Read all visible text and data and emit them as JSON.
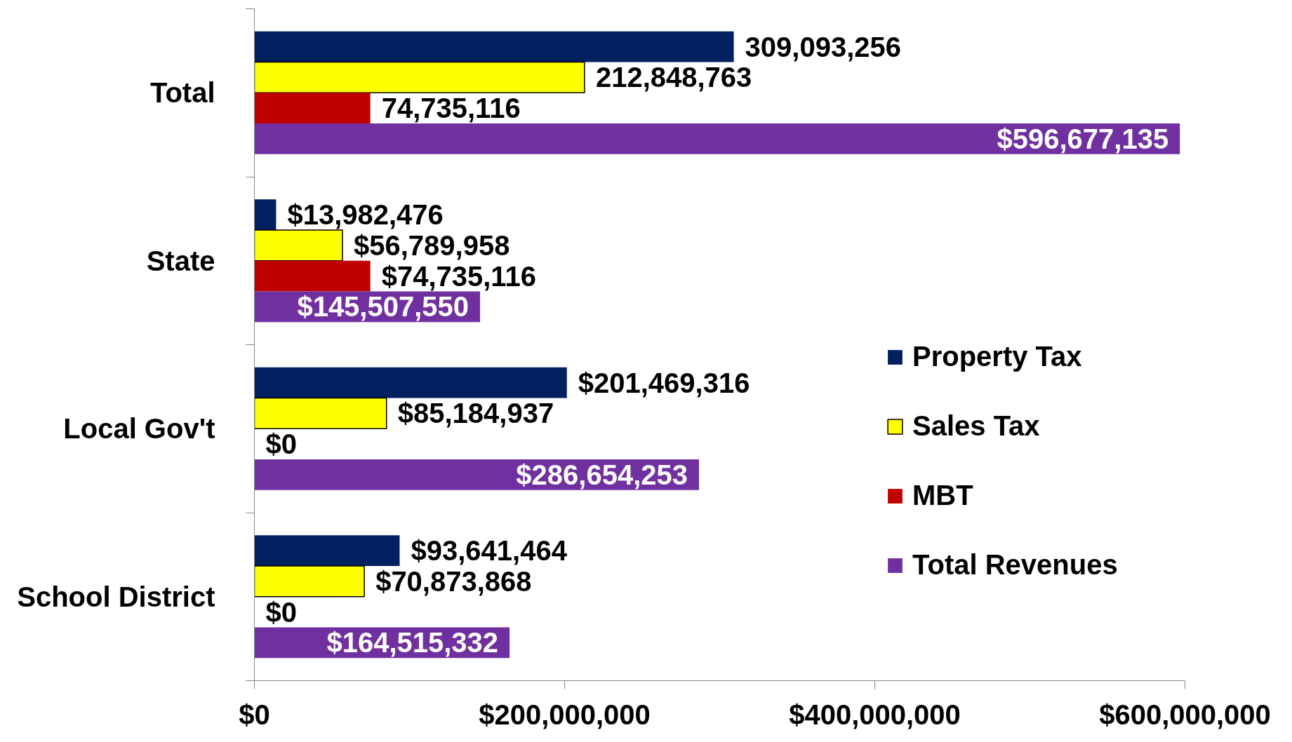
{
  "chart_data": {
    "type": "bar",
    "orientation": "horizontal",
    "categories": [
      "Total",
      "State",
      "Local Gov't",
      "School District"
    ],
    "series": [
      {
        "name": "Property Tax",
        "color": "#002060",
        "values": [
          309093256,
          13982476,
          201469316,
          93641464
        ],
        "value_labels": [
          "309,093,256",
          "$13,982,476",
          "$201,469,316",
          "$93,641,464"
        ]
      },
      {
        "name": "Sales Tax",
        "color": "#ffff00",
        "values": [
          212848763,
          56789958,
          85184937,
          70873868
        ],
        "value_labels": [
          "212,848,763",
          "$56,789,958",
          "$85,184,937",
          "$70,873,868"
        ]
      },
      {
        "name": "MBT",
        "color": "#c00000",
        "values": [
          74735116,
          74735116,
          0,
          0
        ],
        "value_labels": [
          "74,735,116",
          "$74,735,116",
          "$0",
          "$0"
        ]
      },
      {
        "name": "Total Revenues",
        "color": "#7030a0",
        "values": [
          596677135,
          145507550,
          286654253,
          164515332
        ],
        "value_labels": [
          "$596,677,135",
          "$145,507,550",
          "$286,654,253",
          "$164,515,332"
        ]
      }
    ],
    "xlim": [
      0,
      600000000
    ],
    "xticks": [
      {
        "value": 0,
        "label": "$0"
      },
      {
        "value": 200000000,
        "label": "$200,000,000"
      },
      {
        "value": 400000000,
        "label": "$400,000,000"
      },
      {
        "value": 600000000,
        "label": "$600,000,000"
      }
    ],
    "legend": "right",
    "grid": false
  }
}
